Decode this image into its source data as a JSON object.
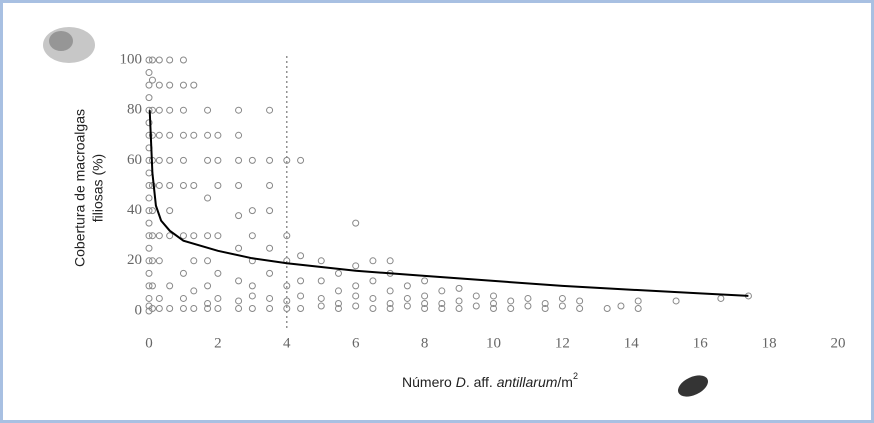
{
  "chart_data": {
    "type": "scatter",
    "y_label": [
      "Cobertura de macroalgas",
      "filiosas (%)"
    ],
    "x_label": [
      "Número ",
      "D",
      ". aff. ",
      "antillarum",
      "/m",
      "2"
    ],
    "xlim": [
      0,
      20
    ],
    "xticks": [
      0,
      2,
      4,
      6,
      8,
      10,
      12,
      14,
      16,
      18,
      20
    ],
    "ylim": [
      0,
      100
    ],
    "yticks": [
      0,
      20,
      40,
      60,
      80,
      100
    ],
    "reference_line_x": 4,
    "series": [
      {
        "type": "scatter",
        "color": "#888888",
        "x": [
          0,
          0,
          0,
          0,
          0,
          0,
          0,
          0,
          0,
          0,
          0,
          0,
          0,
          0,
          0,
          0,
          0,
          0,
          0,
          0,
          0,
          0,
          0.1,
          0.1,
          0.1,
          0.1,
          0.1,
          0.1,
          0.1,
          0.1,
          0.1,
          0.1,
          0.1,
          0.3,
          0.3,
          0.3,
          0.3,
          0.3,
          0.3,
          0.3,
          0.3,
          0.3,
          0.3,
          0.6,
          0.6,
          0.6,
          0.6,
          0.6,
          0.6,
          0.6,
          0.6,
          0.6,
          0.6,
          1,
          1,
          1,
          1,
          1,
          1,
          1,
          1,
          1,
          1,
          1.3,
          1.3,
          1.3,
          1.3,
          1.3,
          1.3,
          1.3,
          1.7,
          1.7,
          1.7,
          1.7,
          1.7,
          1.7,
          1.7,
          1.7,
          1.7,
          2,
          2,
          2,
          2,
          2,
          2,
          2,
          2.6,
          2.6,
          2.6,
          2.6,
          2.6,
          2.6,
          2.6,
          2.6,
          2.6,
          3,
          3,
          3,
          3,
          3,
          3,
          3,
          3.5,
          3.5,
          3.5,
          3.5,
          3.5,
          3.5,
          3.5,
          3.5,
          4,
          4,
          4,
          4,
          4,
          4,
          4.4,
          4.4,
          4.4,
          4.4,
          4.4,
          5,
          5,
          5,
          5,
          5.5,
          5.5,
          5.5,
          5.5,
          6,
          6,
          6,
          6,
          6,
          6.5,
          6.5,
          6.5,
          6.5,
          7,
          7,
          7,
          7,
          7,
          7.5,
          7.5,
          7.5,
          8,
          8,
          8,
          8,
          8.5,
          8.5,
          8.5,
          9,
          9,
          9,
          9.5,
          9.5,
          10,
          10,
          10,
          10.5,
          10.5,
          11,
          11,
          11.5,
          11.5,
          12,
          12,
          12.5,
          12.5,
          13.3,
          13.7,
          14.2,
          14.2,
          15.3,
          16.6,
          17.4
        ],
        "y": [
          100,
          95,
          90,
          85,
          80,
          75,
          70,
          65,
          60,
          55,
          50,
          45,
          40,
          35,
          30,
          25,
          20,
          15,
          10,
          5,
          2,
          0,
          100,
          92,
          80,
          70,
          60,
          50,
          40,
          30,
          20,
          10,
          1,
          100,
          90,
          80,
          70,
          60,
          50,
          30,
          20,
          5,
          1,
          100,
          90,
          80,
          70,
          60,
          50,
          40,
          30,
          10,
          1,
          100,
          90,
          80,
          70,
          60,
          50,
          30,
          15,
          5,
          1,
          90,
          70,
          50,
          30,
          20,
          8,
          1,
          80,
          70,
          60,
          45,
          30,
          20,
          10,
          3,
          1,
          70,
          60,
          50,
          30,
          15,
          5,
          1,
          80,
          70,
          60,
          50,
          38,
          25,
          12,
          4,
          1,
          60,
          40,
          30,
          20,
          10,
          6,
          1,
          80,
          60,
          50,
          40,
          25,
          15,
          5,
          1,
          60,
          30,
          20,
          10,
          4,
          1,
          60,
          22,
          12,
          6,
          1,
          20,
          12,
          5,
          2,
          15,
          8,
          3,
          1,
          35,
          18,
          10,
          6,
          2,
          20,
          12,
          5,
          1,
          20,
          15,
          8,
          3,
          1,
          10,
          5,
          2,
          12,
          6,
          3,
          1,
          8,
          3,
          1,
          9,
          4,
          1,
          6,
          2,
          6,
          3,
          1,
          4,
          1,
          5,
          2,
          3,
          1,
          5,
          2,
          4,
          1,
          1,
          2,
          4,
          1,
          4,
          5,
          6
        ]
      },
      {
        "type": "line",
        "color": "#000000",
        "x": [
          0.02,
          0.1,
          0.2,
          0.35,
          0.6,
          1,
          2,
          3,
          4,
          6,
          8,
          10,
          12,
          14,
          16,
          17.4
        ],
        "y": [
          80,
          55,
          42,
          36,
          32,
          28,
          24,
          21,
          19,
          16,
          14,
          12,
          10,
          8.5,
          7,
          6
        ]
      }
    ]
  }
}
